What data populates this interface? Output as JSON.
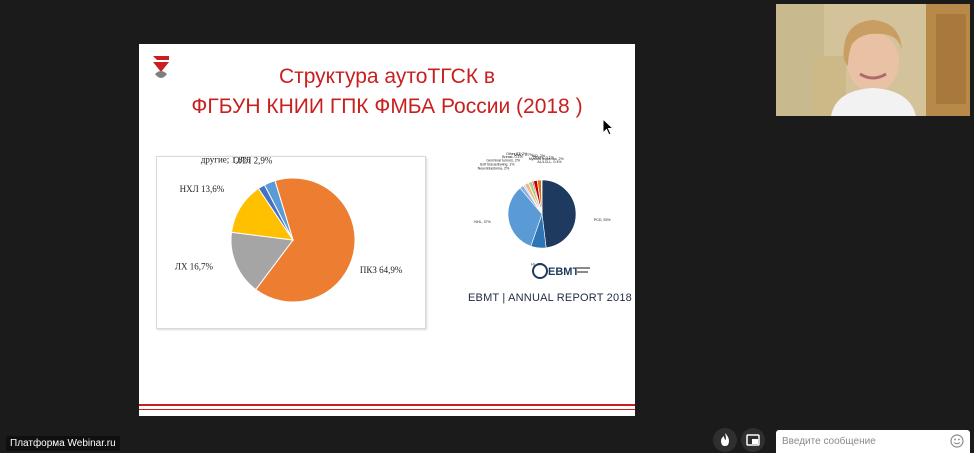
{
  "slide": {
    "title_line1": "Структура аутоТГСК в",
    "title_line2": "ФГБУН КНИИ ГПК ФМБА России (2018 )",
    "ebmt_caption": "EBMT | ANNUAL REPORT 2018",
    "ebmt_logo_text": "EBMT"
  },
  "chart_data": [
    {
      "type": "pie",
      "labels": [
        "ПКЗ 64,9%",
        "ЛХ 16,7%",
        "НХЛ 13,6%",
        "другие; 1,8%",
        "ОЛЛ 2,9%"
      ],
      "values": [
        64.9,
        16.7,
        13.6,
        1.8,
        2.9
      ],
      "colors": [
        "#ed7d31",
        "#a5a5a5",
        "#ffc000",
        "#4472c4",
        "#5b9bd5"
      ]
    },
    {
      "type": "pie",
      "labels": [
        "PCD, 53%",
        "HL, 8%",
        "NHL, 37%",
        "Neuroblastoma, 2%",
        "Soft tissue/Ewing, 1%",
        "Germinal tumors, 2%",
        "Breast, 0.1%",
        "Other ST, 2%",
        "MMD, 0.7%",
        "AID, 2%",
        "Others, 0.1%",
        "Myeloid leukemia, 2%",
        "AL/LCLL, 0.4%"
      ],
      "values": [
        53,
        8,
        37,
        2,
        1,
        2,
        0.1,
        2,
        0.7,
        2,
        0.1,
        2,
        0.4
      ],
      "colors": [
        "#1f3a5f",
        "#2e75b6",
        "#5b9bd5",
        "#8faadc",
        "#bdd7ee",
        "#f4b183",
        "#ffd966",
        "#a9d18e",
        "#ff0000",
        "#c00000",
        "#7f7f7f",
        "#e26b0a",
        "#9dc3e6"
      ]
    }
  ],
  "bottom": {
    "platform_label": "Платформа Webinar.ru",
    "message_placeholder": "Введите сообщение"
  },
  "icons": {
    "fire": "fire-icon",
    "screen": "screen-icon",
    "emoji": "emoji-icon"
  }
}
